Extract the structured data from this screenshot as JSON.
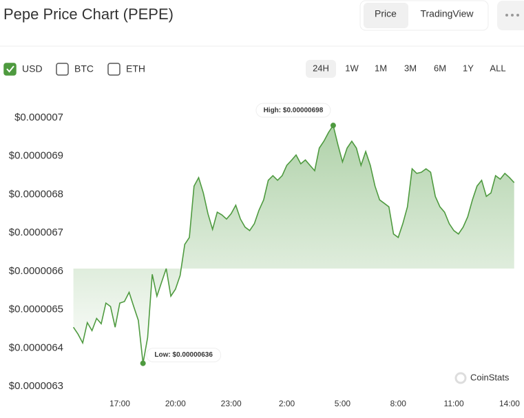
{
  "ui": {
    "title": "Pepe Price Chart (PEPE)",
    "tabs": [
      "Price",
      "TradingView"
    ],
    "currencies": [
      "USD",
      "BTC",
      "ETH"
    ],
    "ranges": [
      "24H",
      "1W",
      "1M",
      "3M",
      "6M",
      "1Y",
      "ALL"
    ],
    "watermark": "CoinStats"
  },
  "chart_data": {
    "type": "line",
    "x": [
      "14:30",
      "14:45",
      "15:00",
      "15:15",
      "15:30",
      "15:45",
      "16:00",
      "16:15",
      "16:30",
      "16:45",
      "17:00",
      "17:15",
      "17:30",
      "17:45",
      "18:00",
      "18:15",
      "18:30",
      "18:45",
      "19:00",
      "19:15",
      "19:30",
      "19:45",
      "20:00",
      "20:15",
      "20:30",
      "20:45",
      "21:00",
      "21:15",
      "21:30",
      "21:45",
      "22:00",
      "22:15",
      "22:30",
      "22:45",
      "23:00",
      "23:15",
      "23:30",
      "23:45",
      "0:00",
      "0:15",
      "0:30",
      "0:45",
      "1:00",
      "1:15",
      "1:30",
      "1:45",
      "2:00",
      "2:15",
      "2:30",
      "2:45",
      "3:00",
      "3:15",
      "3:30",
      "3:45",
      "4:00",
      "4:15",
      "4:30",
      "4:45",
      "5:00",
      "5:15",
      "5:30",
      "5:45",
      "6:00",
      "6:15",
      "6:30",
      "6:45",
      "7:00",
      "7:15",
      "7:30",
      "7:45",
      "8:00",
      "8:15",
      "8:30",
      "8:45",
      "9:00",
      "9:15",
      "9:30",
      "9:45",
      "10:00",
      "10:15",
      "10:30",
      "10:45",
      "11:00",
      "11:15",
      "11:30",
      "11:45",
      "12:00",
      "12:15",
      "12:30",
      "12:45",
      "13:00",
      "13:15",
      "13:30",
      "13:45",
      "14:00",
      "14:15"
    ],
    "series": [
      {
        "name": "USD",
        "color": "#4e9a3f",
        "values": [
          6.454e-06,
          6.436e-06,
          6.413e-06,
          6.466e-06,
          6.445e-06,
          6.477e-06,
          6.463e-06,
          6.517e-06,
          6.508e-06,
          6.454e-06,
          6.517e-06,
          6.521e-06,
          6.545e-06,
          6.508e-06,
          6.472e-06,
          6.36e-06,
          6.427e-06,
          6.592e-06,
          6.535e-06,
          6.571e-06,
          6.607e-06,
          6.535e-06,
          6.553e-06,
          6.589e-06,
          6.67e-06,
          6.688e-06,
          6.822e-06,
          6.844e-06,
          6.804e-06,
          6.75e-06,
          6.709e-06,
          6.754e-06,
          6.747e-06,
          6.736e-06,
          6.75e-06,
          6.772e-06,
          6.736e-06,
          6.715e-06,
          6.706e-06,
          6.724e-06,
          6.759e-06,
          6.786e-06,
          6.837e-06,
          6.849e-06,
          6.837e-06,
          6.849e-06,
          6.876e-06,
          6.889e-06,
          6.903e-06,
          6.88e-06,
          6.89e-06,
          6.876e-06,
          6.862e-06,
          6.921e-06,
          6.939e-06,
          6.962e-06,
          6.98e-06,
          6.93e-06,
          6.885e-06,
          6.921e-06,
          6.939e-06,
          6.921e-06,
          6.876e-06,
          6.912e-06,
          6.876e-06,
          6.822e-06,
          6.786e-06,
          6.777e-06,
          6.768e-06,
          6.697e-06,
          6.688e-06,
          6.724e-06,
          6.768e-06,
          6.867e-06,
          6.855e-06,
          6.858e-06,
          6.867e-06,
          6.858e-06,
          6.795e-06,
          6.768e-06,
          6.754e-06,
          6.724e-06,
          6.706e-06,
          6.697e-06,
          6.715e-06,
          6.742e-06,
          6.786e-06,
          6.822e-06,
          6.837e-06,
          6.795e-06,
          6.804e-06,
          6.849e-06,
          6.84e-06,
          6.855e-06,
          6.844e-06,
          6.831e-06
        ]
      }
    ],
    "ylim": [
      6.3e-06,
      7e-06
    ],
    "yticks": [
      {
        "value": 6.3e-06,
        "label": "$0.0000063"
      },
      {
        "value": 6.4e-06,
        "label": "$0.0000064"
      },
      {
        "value": 6.5e-06,
        "label": "$0.0000065"
      },
      {
        "value": 6.6e-06,
        "label": "$0.0000066"
      },
      {
        "value": 6.7e-06,
        "label": "$0.0000067"
      },
      {
        "value": 6.8e-06,
        "label": "$0.0000068"
      },
      {
        "value": 6.9e-06,
        "label": "$0.0000069"
      },
      {
        "value": 7e-06,
        "label": "$0.000007"
      }
    ],
    "xticks": [
      "17:00",
      "20:00",
      "23:00",
      "2:00",
      "5:00",
      "8:00",
      "11:00",
      "14:00"
    ],
    "annotations": [
      {
        "x": "4:30",
        "value": 6.98e-06,
        "label": "High: $0.00000698"
      },
      {
        "x": "18:15",
        "value": 6.36e-06,
        "label": "Low: $0.00000636"
      }
    ],
    "grid": false
  }
}
